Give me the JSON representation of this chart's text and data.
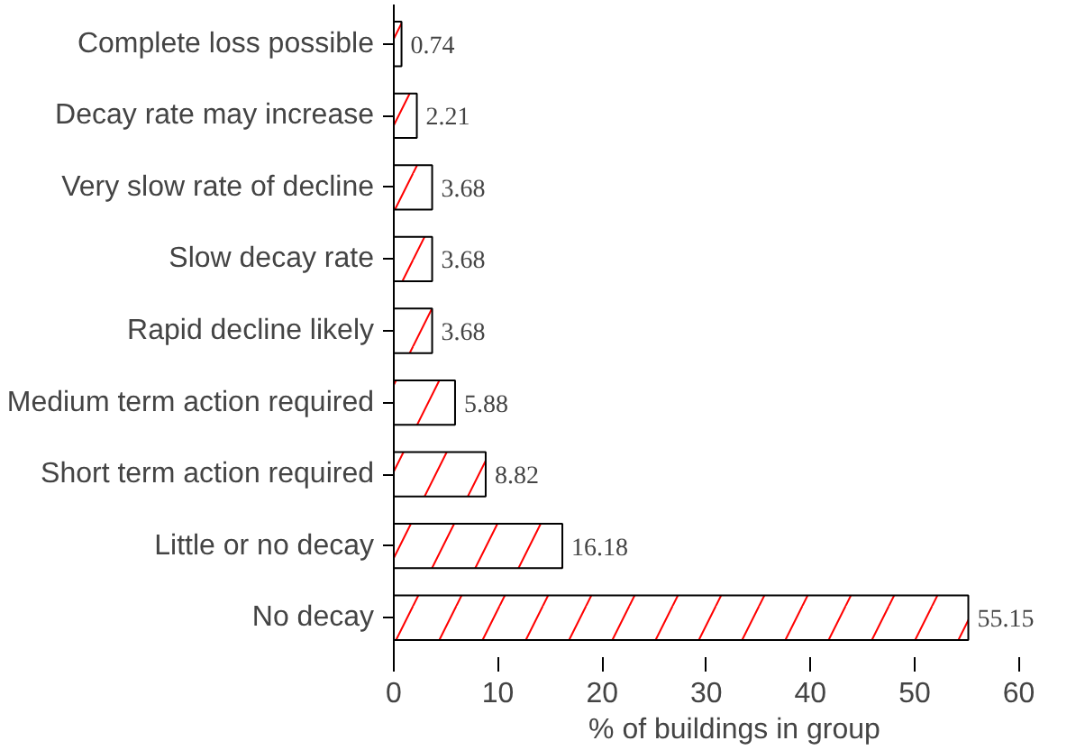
{
  "chart_data": {
    "type": "bar",
    "orientation": "horizontal",
    "xlabel": "% of buildings in group",
    "categories": [
      "Complete loss possible",
      "Decay rate may increase",
      "Very slow rate of decline",
      "Slow decay rate",
      "Rapid decline likely",
      "Medium term action required",
      "Short term action required",
      "Little or no decay",
      "No decay"
    ],
    "values": [
      0.74,
      2.21,
      3.68,
      3.68,
      3.68,
      5.88,
      8.82,
      16.18,
      55.15
    ],
    "color": "#ffffff",
    "data_labels": true,
    "xlim": [
      0,
      60
    ],
    "xticks": [
      0,
      10,
      20,
      30,
      40,
      50,
      60
    ],
    "grid": false
  }
}
